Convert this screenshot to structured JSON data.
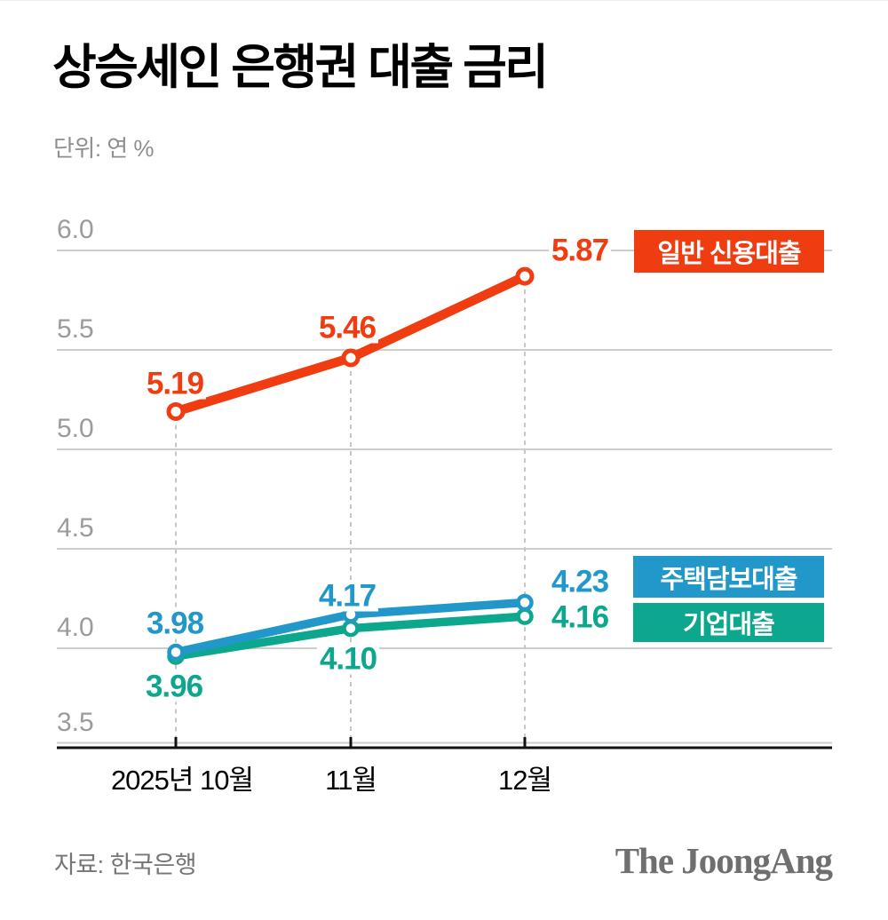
{
  "title": "상승세인 은행권 대출 금리",
  "unit_label": "단위: 연 %",
  "source_label": "자료: 한국은행",
  "brand_logo": "The JoongAng",
  "colors": {
    "credit": "#ef3c10",
    "mortgage": "#2198c9",
    "corporate": "#0ca78c",
    "grid": "#cdcdcd",
    "dashed_guide": "#c6c6c6",
    "axis": "#111111",
    "ytick_label": "#9b9b9b",
    "xtick_label": "#000000",
    "muted_text": "#757575"
  },
  "chart_data": {
    "type": "line",
    "title": "상승세인 은행권 대출 금리",
    "unit": "연 %",
    "x_categories": [
      "2025년 10월",
      "11월",
      "12월"
    ],
    "series": [
      {
        "name": "일반 신용대출",
        "color_key": "credit",
        "values": [
          5.19,
          5.46,
          5.87
        ],
        "labels": [
          "5.19",
          "5.46",
          "5.87"
        ]
      },
      {
        "name": "주택담보대출",
        "color_key": "mortgage",
        "values": [
          3.98,
          4.17,
          4.23
        ],
        "labels": [
          "3.98",
          "4.17",
          "4.23"
        ]
      },
      {
        "name": "기업대출",
        "color_key": "corporate",
        "values": [
          3.96,
          4.1,
          4.16
        ],
        "labels": [
          "3.96",
          "4.10",
          "4.16"
        ]
      }
    ],
    "ylim": [
      3.5,
      6.0
    ],
    "yticks": [
      "3.5",
      "4.0",
      "4.5",
      "5.0",
      "5.5",
      "6.0"
    ],
    "grid": "horizontal",
    "markers": "open-circle",
    "legend_position": "right-of-last-point",
    "source": "한국은행"
  }
}
